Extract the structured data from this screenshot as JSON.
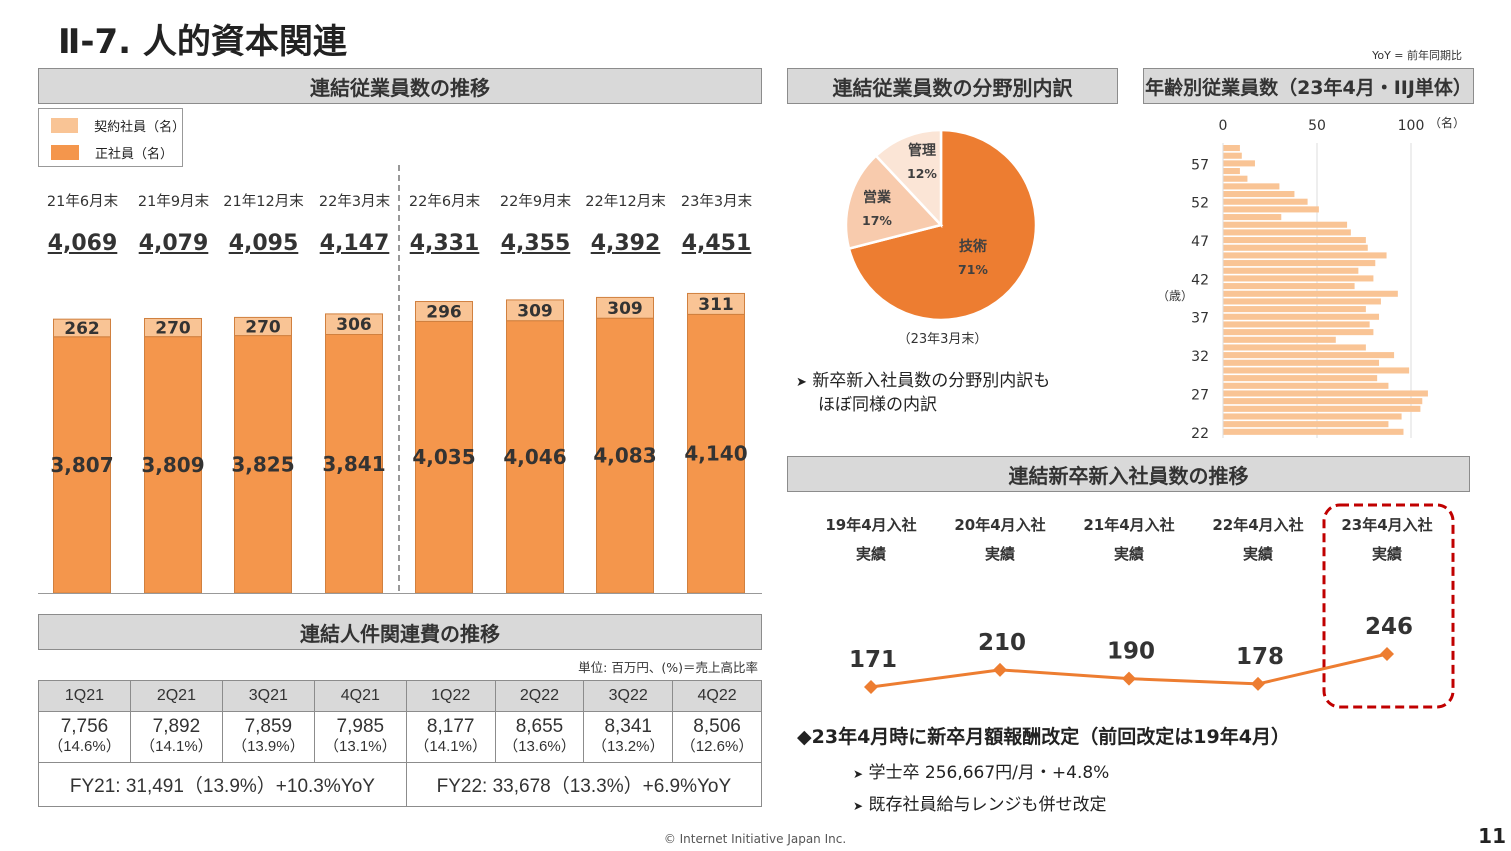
{
  "title": "Ⅱ-7.  人的資本関連",
  "yoy_note": "YoY = 前年同期比",
  "headers": {
    "employees": "連結従業員数の推移",
    "breakdown": "連結従業員数の分野別内訳",
    "age": "年齢別従業員数（23年4月・IIJ単体）",
    "cost": "連結人件関連費の推移",
    "newgrads": "連結新卒新入社員数の推移"
  },
  "chart_data": [
    {
      "type": "bar",
      "stacked": true,
      "categories": [
        "21年6月末",
        "21年9月末",
        "21年12月末",
        "22年3月末",
        "22年6月末",
        "22年9月末",
        "22年12月末",
        "23年3月末"
      ],
      "totals": [
        "4,069",
        "4,079",
        "4,095",
        "4,147",
        "4,331",
        "4,355",
        "4,392",
        "4,451"
      ],
      "series": [
        {
          "name": "正社員（名）",
          "values": [
            3807,
            3809,
            3825,
            3841,
            4035,
            4046,
            4083,
            4140
          ],
          "labels": [
            "3,807",
            "3,809",
            "3,825",
            "3,841",
            "4,035",
            "4,046",
            "4,083",
            "4,140"
          ],
          "color": "#f4964c"
        },
        {
          "name": "契約社員（名）",
          "values": [
            262,
            270,
            270,
            306,
            296,
            309,
            309,
            311
          ],
          "labels": [
            "262",
            "270",
            "270",
            "306",
            "296",
            "309",
            "309",
            "311"
          ],
          "color": "#f9c495"
        }
      ]
    },
    {
      "type": "pie",
      "slices": [
        {
          "label": "技術",
          "value": 71,
          "text": "71%",
          "color": "#ed7d31"
        },
        {
          "label": "営業",
          "value": 17,
          "text": "17%",
          "color": "#f8cbad"
        },
        {
          "label": "管理",
          "value": 12,
          "text": "12%",
          "color": "#fbe5d6"
        }
      ],
      "caption": "（23年3月末）"
    },
    {
      "type": "bar",
      "orientation": "horizontal",
      "xlabel_unit": "（名）",
      "ylabel": "（歳）",
      "xticks": [
        "0",
        "50",
        "100"
      ],
      "xlim": [
        0,
        110
      ],
      "yticks": [
        "57",
        "52",
        "47",
        "42",
        "37",
        "32",
        "27",
        "22"
      ],
      "ages": [
        59,
        58,
        57,
        56,
        55,
        54,
        53,
        52,
        51,
        50,
        49,
        48,
        47,
        46,
        45,
        44,
        43,
        42,
        41,
        40,
        39,
        38,
        37,
        36,
        35,
        34,
        33,
        32,
        31,
        30,
        29,
        28,
        27,
        26,
        25,
        24,
        23,
        22
      ],
      "values": [
        9,
        10,
        17,
        9,
        13,
        30,
        38,
        45,
        51,
        31,
        66,
        68,
        76,
        77,
        87,
        81,
        72,
        80,
        70,
        93,
        84,
        76,
        83,
        78,
        80,
        60,
        76,
        91,
        83,
        99,
        82,
        88,
        109,
        106,
        105,
        95,
        88,
        96
      ],
      "grid": true,
      "color": "#f9c495"
    },
    {
      "type": "line",
      "categories": [
        [
          "19年4月入社",
          "実績"
        ],
        [
          "20年4月入社",
          "実績"
        ],
        [
          "21年4月入社",
          "実績"
        ],
        [
          "22年4月入社",
          "実績"
        ],
        [
          "23年4月入社",
          "実績"
        ]
      ],
      "values": [
        171,
        210,
        190,
        178,
        246
      ],
      "color": "#ed7d31",
      "highlight_index": 4,
      "highlight_color": "#c00000"
    }
  ],
  "breakdown_note": [
    "新卒新入社員数の分野別内訳も",
    "ほぼ同様の内訳"
  ],
  "cost": {
    "unit": "単位: 百万円、(%)＝売上高比率",
    "quarters": [
      "1Q21",
      "2Q21",
      "3Q21",
      "4Q21",
      "1Q22",
      "2Q22",
      "3Q22",
      "4Q22"
    ],
    "values": [
      "7,756",
      "7,892",
      "7,859",
      "7,985",
      "8,177",
      "8,655",
      "8,341",
      "8,506"
    ],
    "ratios": [
      "（14.6%）",
      "（14.1%）",
      "（13.9%）",
      "（13.1%）",
      "（14.1%）",
      "（13.6%）",
      "（13.2%）",
      "（12.6%）"
    ],
    "fy21": "FY21:  31,491（13.9%）+10.3%YoY",
    "fy22": "FY22:  33,678（13.3%）+6.9%YoY"
  },
  "salary": {
    "headline": "23年4月時に新卒月額報酬改定（前回改定は19年4月）",
    "items": [
      "学士卒 256,667円/月・+4.8%",
      "既存社員給与レンジも併せ改定"
    ]
  },
  "footer": {
    "copyright": "© Internet Initiative Japan Inc.",
    "page": "11"
  }
}
